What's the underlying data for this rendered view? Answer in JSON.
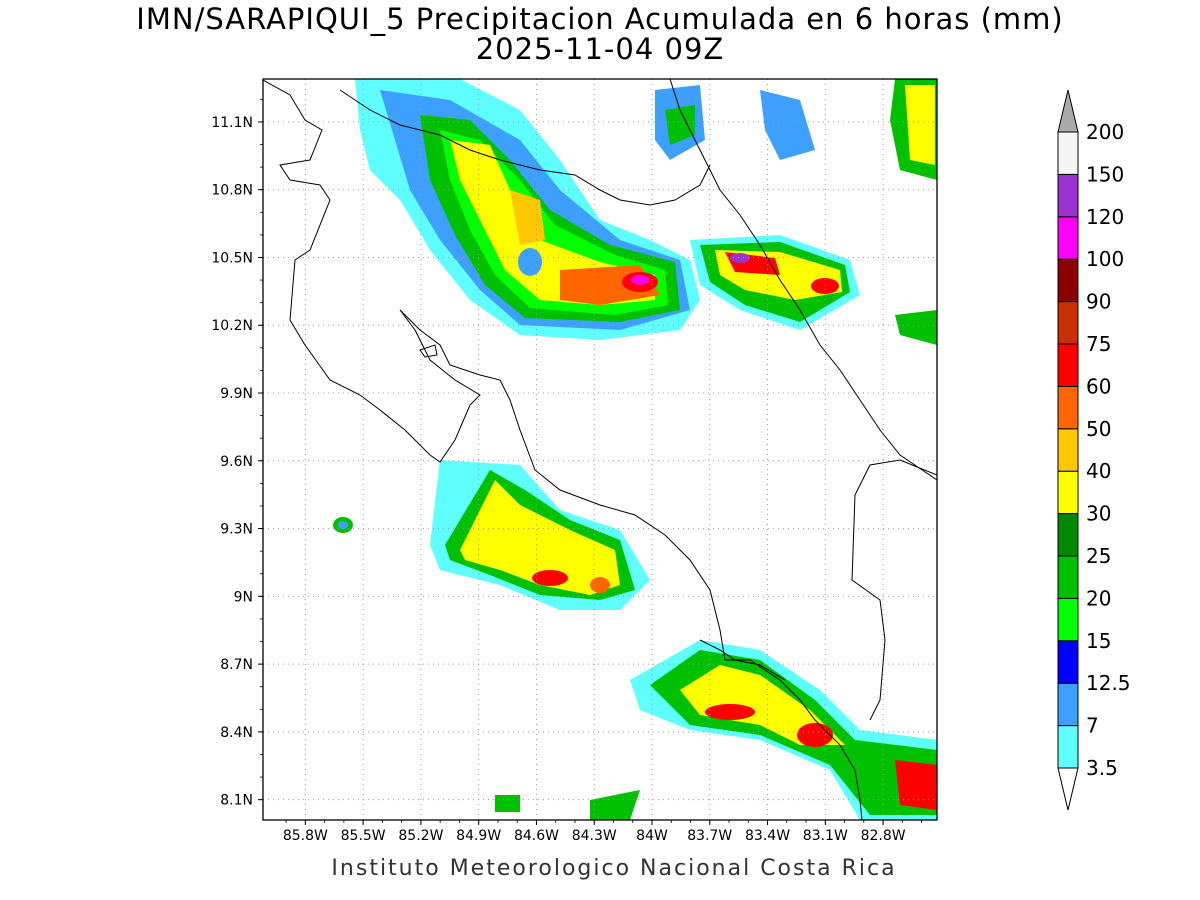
{
  "title": "IMN/SARAPIQUI_5 Precipitacion Acumulada en 6 horas (mm)",
  "subtitle": "2025-11-04 09Z",
  "footer": "Instituto Meteorologico Nacional Costa Rica",
  "map": {
    "lon_range": [
      -86.02,
      -82.52
    ],
    "lat_range": [
      8.01,
      11.29
    ],
    "lon_ticks": [
      "85.8W",
      "85.5W",
      "85.2W",
      "84.9W",
      "84.6W",
      "84.3W",
      "84W",
      "83.7W",
      "83.4W",
      "83.1W",
      "82.8W"
    ],
    "lat_ticks": [
      "11.1N",
      "10.8N",
      "10.5N",
      "10.2N",
      "9.9N",
      "9.6N",
      "9.3N",
      "9N",
      "8.7N",
      "8.4N",
      "8.1N"
    ],
    "grid": "dotted"
  },
  "colorbar": {
    "labels": [
      "3.5",
      "7",
      "12.5",
      "15",
      "20",
      "25",
      "30",
      "40",
      "50",
      "60",
      "75",
      "90",
      "100",
      "120",
      "150",
      "200"
    ],
    "colors": [
      "#ffffff",
      "#5fffff",
      "#3da0ff",
      "#0000ff",
      "#00ff00",
      "#00c000",
      "#008800",
      "#ffff00",
      "#ffc800",
      "#ff6600",
      "#ff0000",
      "#c83200",
      "#8b0000",
      "#ff00ff",
      "#9a32cd",
      "#f5f5f5"
    ],
    "arrow_top_color": "#aaaaaa"
  }
}
